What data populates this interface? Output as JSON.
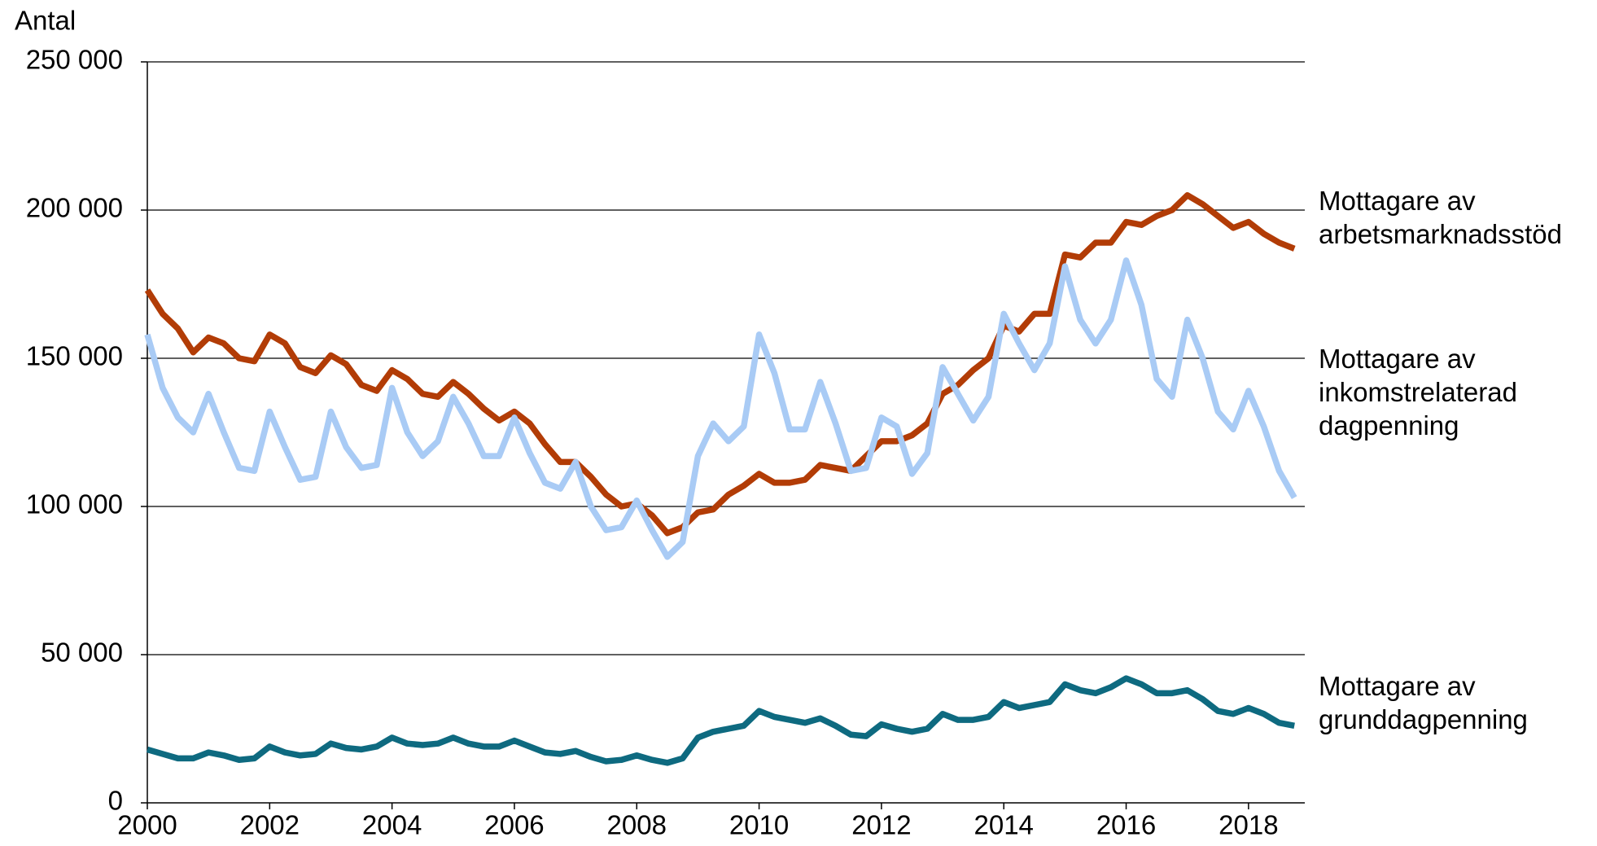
{
  "chart_data": {
    "type": "line",
    "y_label": "Antal",
    "x": [
      2000,
      2000.25,
      2000.5,
      2000.75,
      2001,
      2001.25,
      2001.5,
      2001.75,
      2002,
      2002.25,
      2002.5,
      2002.75,
      2003,
      2003.25,
      2003.5,
      2003.75,
      2004,
      2004.25,
      2004.5,
      2004.75,
      2005,
      2005.25,
      2005.5,
      2005.75,
      2006,
      2006.25,
      2006.5,
      2006.75,
      2007,
      2007.25,
      2007.5,
      2007.75,
      2008,
      2008.25,
      2008.5,
      2008.75,
      2009,
      2009.25,
      2009.5,
      2009.75,
      2010,
      2010.25,
      2010.5,
      2010.75,
      2011,
      2011.25,
      2011.5,
      2011.75,
      2012,
      2012.25,
      2012.5,
      2012.75,
      2013,
      2013.25,
      2013.5,
      2013.75,
      2014,
      2014.25,
      2014.5,
      2014.75,
      2015,
      2015.25,
      2015.5,
      2015.75,
      2016,
      2016.25,
      2016.5,
      2016.75,
      2017,
      2017.25,
      2017.5,
      2017.75,
      2018,
      2018.25,
      2018.5,
      2018.75
    ],
    "series": [
      {
        "name": "Mottagare av arbetsmarknadsstöd",
        "color": "#b23c06",
        "values": [
          173000,
          165000,
          160000,
          152000,
          157000,
          155000,
          150000,
          149000,
          158000,
          155000,
          147000,
          145000,
          151000,
          148000,
          141000,
          139000,
          146000,
          143000,
          138000,
          137000,
          142000,
          138000,
          133000,
          129000,
          132000,
          128000,
          121000,
          115000,
          115000,
          110000,
          104000,
          100000,
          101000,
          97000,
          91000,
          93000,
          98000,
          99000,
          104000,
          107000,
          111000,
          108000,
          108000,
          109000,
          114000,
          113000,
          112000,
          117000,
          122000,
          122000,
          124000,
          128000,
          138000,
          141000,
          146000,
          150000,
          161000,
          159000,
          165000,
          165000,
          185000,
          184000,
          189000,
          189000,
          196000,
          195000,
          198000,
          200000,
          205000,
          202000,
          198000,
          194000,
          196000,
          192000,
          189000,
          187000
        ]
      },
      {
        "name": "Mottagare av inkomstrelaterad dagpenning",
        "color": "#a9cbf5",
        "values": [
          158000,
          140000,
          130000,
          125000,
          138000,
          125000,
          113000,
          112000,
          132000,
          120000,
          109000,
          110000,
          132000,
          120000,
          113000,
          114000,
          140000,
          125000,
          117000,
          122000,
          137000,
          128000,
          117000,
          117000,
          130000,
          118000,
          108000,
          106000,
          115000,
          100000,
          92000,
          93000,
          102000,
          92000,
          83000,
          88000,
          117000,
          128000,
          122000,
          127000,
          158000,
          145000,
          126000,
          126000,
          142000,
          128000,
          112000,
          113000,
          130000,
          127000,
          111000,
          118000,
          147000,
          138000,
          129000,
          137000,
          165000,
          155000,
          146000,
          155000,
          181000,
          163000,
          155000,
          163000,
          183000,
          168000,
          143000,
          137000,
          163000,
          150000,
          132000,
          126000,
          139000,
          127000,
          112000,
          103000
        ]
      },
      {
        "name": "Mottagare av grunddagpenning",
        "color": "#0e6a80",
        "values": [
          18000,
          16500,
          15000,
          15000,
          17000,
          16000,
          14500,
          15000,
          19000,
          17000,
          16000,
          16500,
          20000,
          18500,
          18000,
          19000,
          22000,
          20000,
          19500,
          20000,
          22000,
          20000,
          19000,
          19000,
          21000,
          19000,
          17000,
          16500,
          17500,
          15500,
          14000,
          14500,
          16000,
          14500,
          13500,
          15000,
          22000,
          24000,
          25000,
          26000,
          31000,
          29000,
          28000,
          27000,
          28500,
          26000,
          23000,
          22500,
          26500,
          25000,
          24000,
          25000,
          30000,
          28000,
          28000,
          29000,
          34000,
          32000,
          33000,
          34000,
          40000,
          38000,
          37000,
          39000,
          42000,
          40000,
          37000,
          37000,
          38000,
          35000,
          31000,
          30000,
          32000,
          30000,
          27000,
          26000
        ]
      }
    ],
    "xlim": [
      2000,
      2018.92
    ],
    "xticks": [
      2000,
      2002,
      2004,
      2006,
      2008,
      2010,
      2012,
      2014,
      2016,
      2018
    ],
    "ylim": [
      0,
      250000
    ],
    "yticks": [
      0,
      {
        "value": 50000,
        "label": "50 000"
      },
      {
        "value": 100000,
        "label": "100 000"
      },
      {
        "value": 150000,
        "label": "150 000"
      },
      {
        "value": 200000,
        "label": "200 000"
      },
      {
        "value": 250000,
        "label": "250 000"
      }
    ],
    "grid": true
  }
}
